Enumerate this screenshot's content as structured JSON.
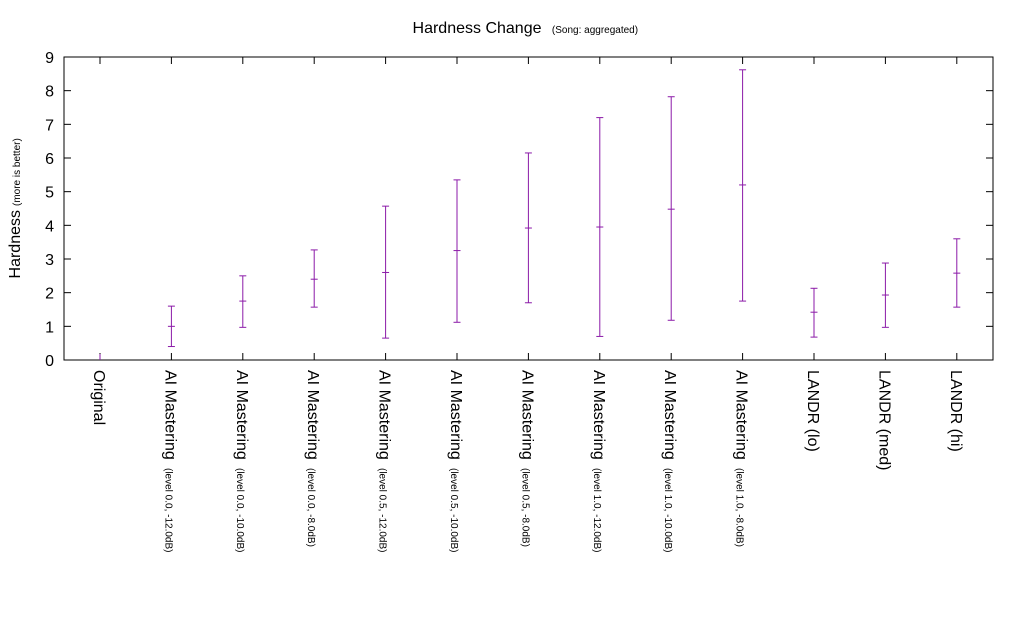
{
  "chart_data": {
    "type": "errorbar",
    "title": "Hardness Change",
    "subtitle": "(Song: aggregated)",
    "ylabel": "Hardness",
    "ylabel_note": "(more is better)",
    "xlabel": "",
    "ylim": [
      0,
      9
    ],
    "yticks": [
      0,
      1,
      2,
      3,
      4,
      5,
      6,
      7,
      8,
      9
    ],
    "grid": false,
    "legend": "none",
    "color": "#8b1aa8",
    "categories": [
      {
        "main": "Original",
        "sub": ""
      },
      {
        "main": "AI Mastering",
        "sub": "(level 0.0, -12.0dB)"
      },
      {
        "main": "AI Mastering",
        "sub": "(level 0.0, -10.0dB)"
      },
      {
        "main": "AI Mastering",
        "sub": "(level 0.0, -8.0dB)"
      },
      {
        "main": "AI Mastering",
        "sub": "(level 0.5, -12.0dB)"
      },
      {
        "main": "AI Mastering",
        "sub": "(level 0.5, -10.0dB)"
      },
      {
        "main": "AI Mastering",
        "sub": "(level 0.5, -8.0dB)"
      },
      {
        "main": "AI Mastering",
        "sub": "(level 1.0, -12.0dB)"
      },
      {
        "main": "AI Mastering",
        "sub": "(level 1.0, -10.0dB)"
      },
      {
        "main": "AI Mastering",
        "sub": "(level 1.0, -8.0dB)"
      },
      {
        "main": "LANDR (lo)",
        "sub": ""
      },
      {
        "main": "LANDR (med)",
        "sub": ""
      },
      {
        "main": "LANDR (hi)",
        "sub": ""
      }
    ],
    "series": [
      {
        "mean": [
          0,
          1.0,
          1.75,
          2.4,
          2.6,
          3.25,
          3.92,
          3.95,
          4.48,
          5.2,
          1.42,
          1.93,
          2.58
        ],
        "low": [
          0,
          0.4,
          0.97,
          1.57,
          0.65,
          1.12,
          1.7,
          0.7,
          1.18,
          1.75,
          0.68,
          0.97,
          1.57
        ],
        "high": [
          0,
          1.6,
          2.5,
          3.27,
          4.57,
          5.35,
          6.15,
          7.2,
          7.82,
          8.62,
          2.13,
          2.88,
          3.6
        ]
      }
    ]
  }
}
